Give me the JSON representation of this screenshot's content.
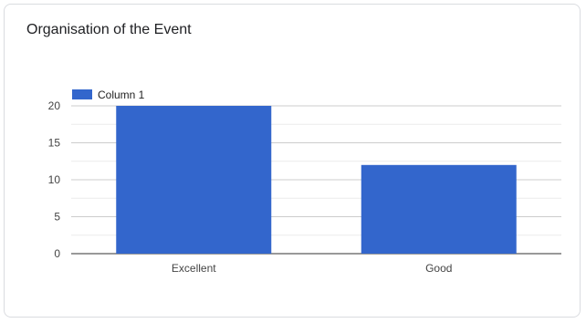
{
  "chart_data": {
    "type": "bar",
    "title": "Organisation of the Event",
    "categories": [
      "Excellent",
      "Good"
    ],
    "series": [
      {
        "name": "Column 1",
        "values": [
          20,
          12
        ],
        "color": "#3366cc"
      }
    ],
    "ylim": [
      0,
      20
    ],
    "yticks": [
      0,
      5,
      10,
      15,
      20
    ],
    "grid": true,
    "legend_position": "top-left"
  }
}
